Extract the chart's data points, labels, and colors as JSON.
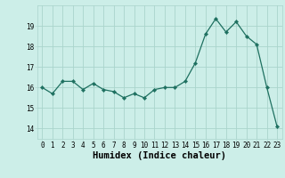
{
  "x": [
    0,
    1,
    2,
    3,
    4,
    5,
    6,
    7,
    8,
    9,
    10,
    11,
    12,
    13,
    14,
    15,
    16,
    17,
    18,
    19,
    20,
    21,
    22,
    23
  ],
  "y": [
    16.0,
    15.7,
    16.3,
    16.3,
    15.9,
    16.2,
    15.9,
    15.8,
    15.5,
    15.7,
    15.5,
    15.9,
    16.0,
    16.0,
    16.3,
    17.2,
    18.6,
    19.35,
    18.7,
    19.2,
    18.5,
    18.1,
    16.0,
    14.1
  ],
  "line_color": "#1e7060",
  "marker": "D",
  "marker_size": 2.2,
  "bg_color": "#cceee8",
  "grid_color": "#aad4cc",
  "xlabel": "Humidex (Indice chaleur)",
  "ylim": [
    13.5,
    20.0
  ],
  "xlim": [
    -0.5,
    23.5
  ],
  "yticks": [
    14,
    15,
    16,
    17,
    18,
    19
  ],
  "xticks": [
    0,
    1,
    2,
    3,
    4,
    5,
    6,
    7,
    8,
    9,
    10,
    11,
    12,
    13,
    14,
    15,
    16,
    17,
    18,
    19,
    20,
    21,
    22,
    23
  ],
  "tick_fontsize": 5.5,
  "xlabel_fontsize": 7.5
}
